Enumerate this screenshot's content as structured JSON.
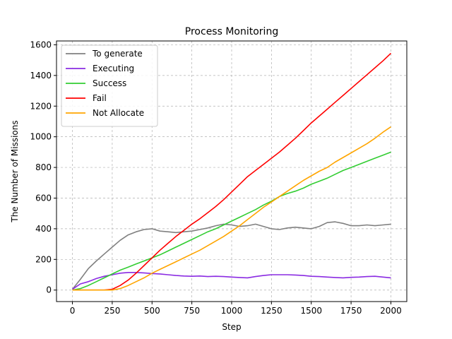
{
  "chart_data": {
    "type": "line",
    "title": "Process Monitoring",
    "xlabel": "Step",
    "ylabel": "The Number of Missions",
    "xlim": [
      -100,
      2100
    ],
    "ylim": [
      -75,
      1625
    ],
    "xticks": [
      0,
      250,
      500,
      750,
      1000,
      1250,
      1500,
      1750,
      2000
    ],
    "yticks": [
      0,
      200,
      400,
      600,
      800,
      1000,
      1200,
      1400,
      1600
    ],
    "grid": true,
    "legend_position": "top-left",
    "series": [
      {
        "name": "To generate",
        "color": "#808080",
        "x": [
          0,
          50,
          100,
          150,
          200,
          250,
          300,
          350,
          400,
          450,
          500,
          550,
          600,
          650,
          700,
          750,
          800,
          850,
          900,
          950,
          1000,
          1050,
          1100,
          1150,
          1200,
          1250,
          1300,
          1350,
          1400,
          1450,
          1500,
          1550,
          1600,
          1650,
          1700,
          1750,
          1800,
          1850,
          1900,
          1950,
          2000
        ],
        "y": [
          5,
          70,
          140,
          190,
          235,
          280,
          325,
          360,
          380,
          395,
          400,
          385,
          380,
          375,
          380,
          385,
          395,
          405,
          420,
          430,
          425,
          415,
          420,
          430,
          415,
          400,
          395,
          405,
          410,
          405,
          400,
          415,
          440,
          445,
          435,
          420,
          420,
          425,
          420,
          425,
          430
        ]
      },
      {
        "name": "Executing",
        "color": "#8a2be2",
        "x": [
          0,
          50,
          100,
          150,
          200,
          250,
          300,
          350,
          400,
          450,
          500,
          550,
          600,
          650,
          700,
          750,
          800,
          850,
          900,
          950,
          1000,
          1050,
          1100,
          1150,
          1200,
          1250,
          1300,
          1350,
          1400,
          1450,
          1500,
          1550,
          1600,
          1650,
          1700,
          1750,
          1800,
          1850,
          1900,
          1950,
          2000
        ],
        "y": [
          5,
          40,
          55,
          75,
          90,
          100,
          110,
          115,
          115,
          112,
          108,
          105,
          100,
          95,
          92,
          90,
          92,
          88,
          90,
          88,
          85,
          82,
          80,
          88,
          95,
          100,
          100,
          100,
          98,
          95,
          90,
          88,
          85,
          82,
          80,
          83,
          85,
          88,
          90,
          85,
          80
        ]
      },
      {
        "name": "Success",
        "color": "#32cd32",
        "x": [
          0,
          50,
          100,
          150,
          200,
          250,
          300,
          350,
          400,
          450,
          500,
          550,
          600,
          650,
          700,
          750,
          800,
          850,
          900,
          950,
          1000,
          1050,
          1100,
          1150,
          1200,
          1250,
          1300,
          1350,
          1400,
          1450,
          1500,
          1550,
          1600,
          1650,
          1700,
          1750,
          1800,
          1850,
          1900,
          1950,
          2000
        ],
        "y": [
          0,
          10,
          30,
          55,
          80,
          105,
          130,
          150,
          170,
          190,
          210,
          230,
          255,
          280,
          305,
          330,
          355,
          380,
          400,
          425,
          450,
          475,
          500,
          525,
          555,
          580,
          610,
          630,
          645,
          665,
          690,
          710,
          730,
          755,
          780,
          800,
          820,
          840,
          860,
          880,
          900
        ]
      },
      {
        "name": "Fail",
        "color": "#ff0000",
        "x": [
          0,
          50,
          100,
          150,
          200,
          250,
          300,
          350,
          400,
          450,
          500,
          550,
          600,
          650,
          700,
          750,
          800,
          850,
          900,
          950,
          1000,
          1050,
          1100,
          1150,
          1200,
          1250,
          1300,
          1350,
          1400,
          1450,
          1500,
          1550,
          1600,
          1650,
          1700,
          1750,
          1800,
          1850,
          1900,
          1950,
          2000
        ],
        "y": [
          0,
          0,
          0,
          0,
          0,
          5,
          30,
          65,
          110,
          160,
          210,
          260,
          305,
          350,
          390,
          430,
          465,
          505,
          545,
          590,
          640,
          690,
          740,
          780,
          820,
          860,
          900,
          945,
          990,
          1040,
          1090,
          1135,
          1180,
          1225,
          1270,
          1315,
          1360,
          1405,
          1450,
          1495,
          1545
        ]
      },
      {
        "name": "Not Allocate",
        "color": "#ffa500",
        "x": [
          0,
          50,
          100,
          150,
          200,
          250,
          300,
          350,
          400,
          450,
          500,
          550,
          600,
          650,
          700,
          750,
          800,
          850,
          900,
          950,
          1000,
          1050,
          1100,
          1150,
          1200,
          1250,
          1300,
          1350,
          1400,
          1450,
          1500,
          1550,
          1600,
          1650,
          1700,
          1750,
          1800,
          1850,
          1900,
          1950,
          2000
        ],
        "y": [
          0,
          0,
          0,
          0,
          0,
          0,
          10,
          30,
          55,
          80,
          110,
          135,
          160,
          185,
          210,
          235,
          260,
          290,
          320,
          350,
          385,
          420,
          460,
          500,
          540,
          575,
          610,
          645,
          680,
          715,
          745,
          775,
          800,
          835,
          865,
          895,
          925,
          955,
          990,
          1030,
          1065
        ]
      }
    ]
  }
}
